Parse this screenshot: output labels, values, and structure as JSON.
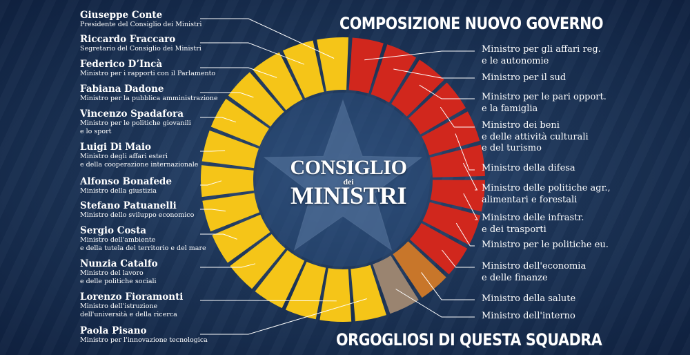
{
  "headings": {
    "top": "COMPOSIZIONE NUOVO GOVERNO",
    "bottom": "ORGOGLIOSI DI QUESTA SQUADRA"
  },
  "center": {
    "line1": "CONSIGLIO",
    "line2": "dei",
    "line3": "MINISTRI"
  },
  "colors": {
    "yellow": "#f5c518",
    "red": "#d1271d",
    "orange": "#c8762a",
    "taupe": "#9a8470",
    "line": "#ffffff"
  },
  "left_members": [
    {
      "name": "Giuseppe Conte",
      "role": "Presidente del Consiglio dei Ministri"
    },
    {
      "name": "Riccardo Fraccaro",
      "role": "Segretario del Consiglio dei Ministri"
    },
    {
      "name": "Federico D’Incà",
      "role": "Ministro per i rapporti con il Parlamento"
    },
    {
      "name": "Fabiana Dadone",
      "role": "Ministro per la pubblica amministrazione"
    },
    {
      "name": "Vincenzo Spadafora",
      "role": "Ministro per le politiche giovanili\ne lo sport"
    },
    {
      "name": "Luigi Di Maio",
      "role": "Ministro degli affari esteri\ne della cooperazione internazionale"
    },
    {
      "name": "Alfonso Bonafede",
      "role": "Ministro della giustizia"
    },
    {
      "name": "Stefano Patuanelli",
      "role": "Ministro dello sviluppo economico"
    },
    {
      "name": "Sergio Costa",
      "role": "Ministro dell'ambiente\ne della tutela del territorio e del mare"
    },
    {
      "name": "Nunzia Catalfo",
      "role": "Ministro del lavoro\n e delle politiche sociali"
    },
    {
      "name": "Lorenzo Fioramonti",
      "role": "Ministro dell'istruzione\ndell'università e della ricerca"
    },
    {
      "name": "Paola Pisano",
      "role": "Ministro per l'innovazione tecnologica"
    }
  ],
  "right_ministries": [
    "Ministro per gli affari reg.\ne le autonomie",
    "Ministro per il sud",
    "Ministro per le pari opport.\ne la famiglia",
    "Ministro dei beni\ne delle attività culturali\ne del turismo",
    "Ministro della difesa",
    "Ministro delle politiche agr.,\nalimentari e forestali",
    "Ministro delle infrastr.\ne dei trasporti",
    "Ministro per le politiche eu.",
    "Ministro dell'economia\ne delle finanze",
    "Ministro della salute",
    "Ministro dell'interno"
  ]
}
